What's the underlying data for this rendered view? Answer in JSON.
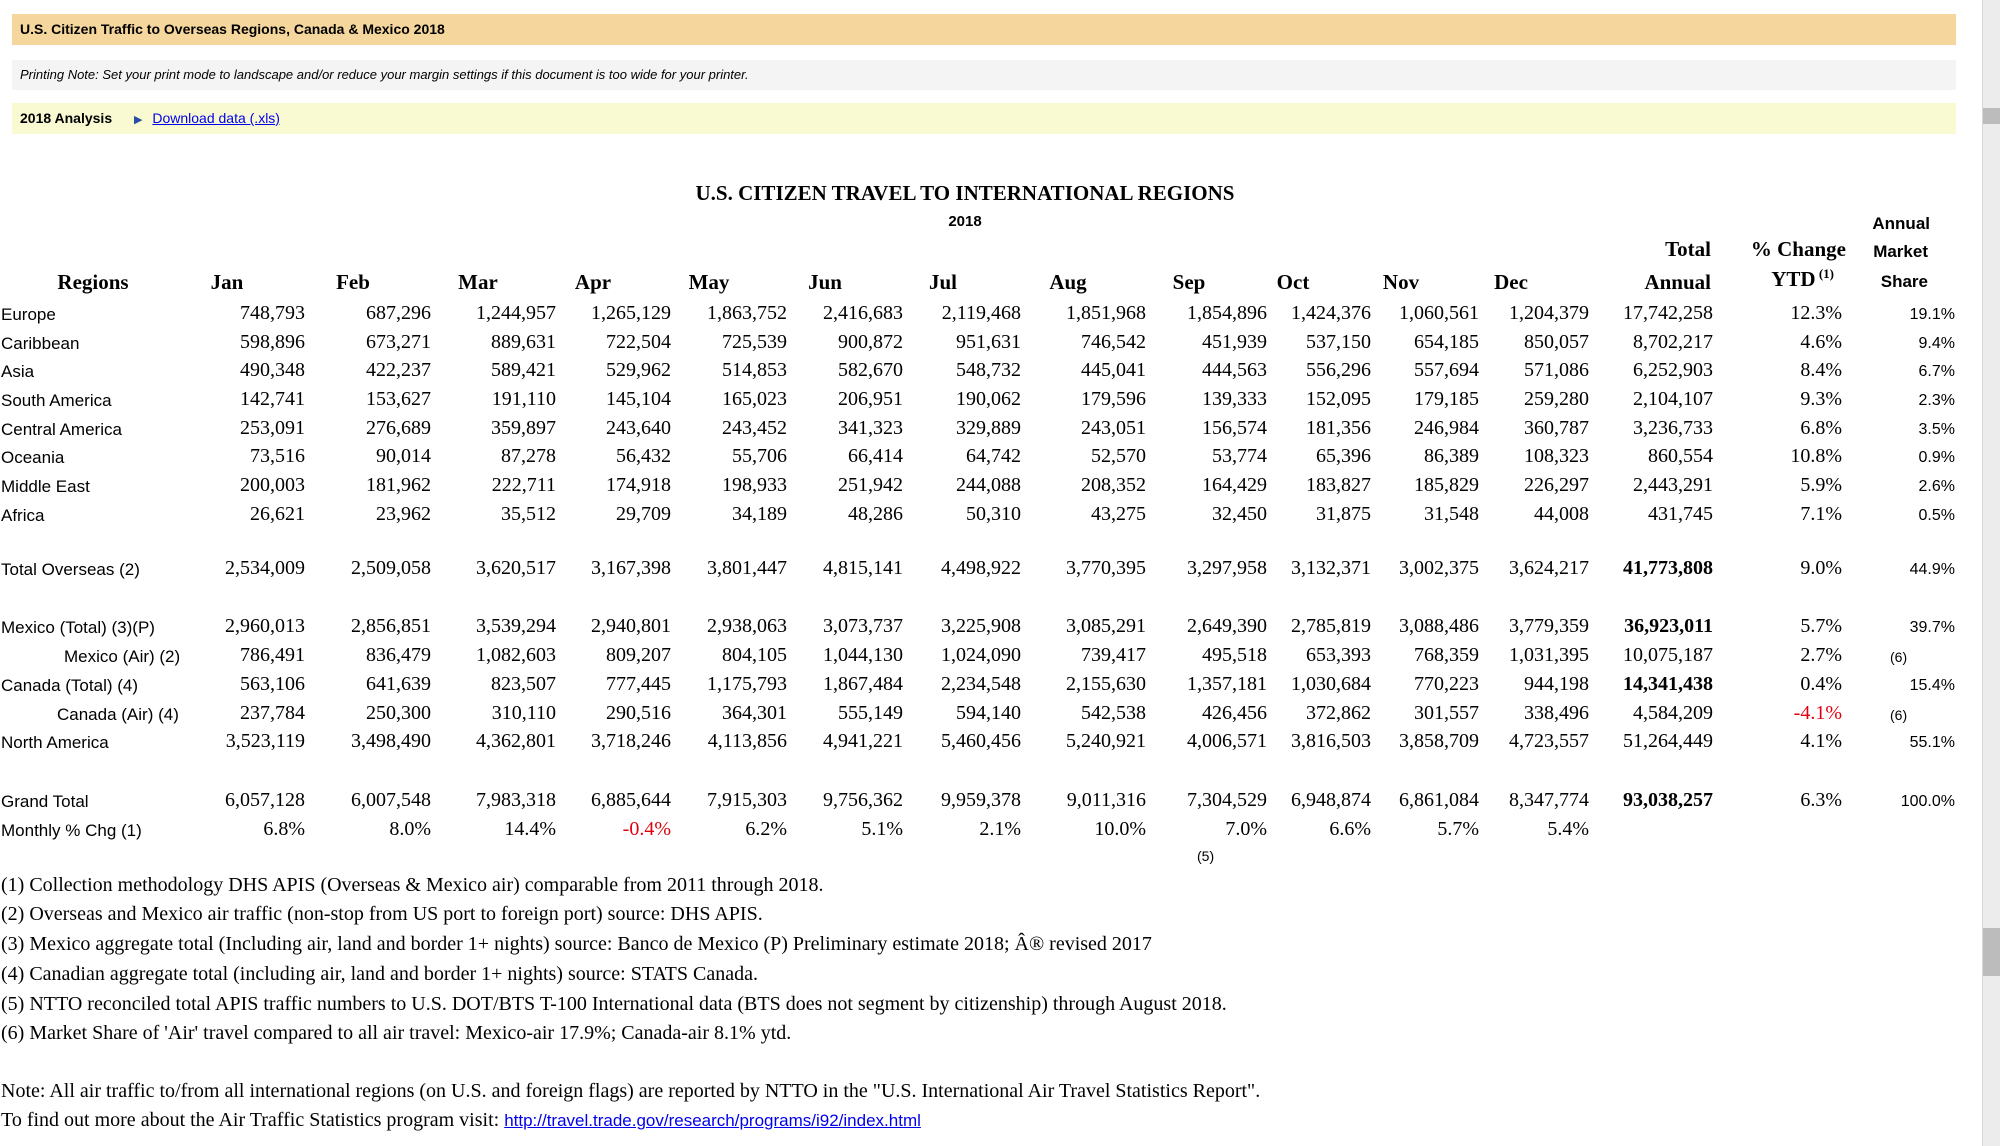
{
  "header": {
    "title": "U.S. Citizen Traffic to Overseas Regions, Canada & Mexico 2018",
    "printing_note": "Printing Note: Set your print mode to landscape and/or reduce your margin settings if this document is too wide for your printer.",
    "analysis_label": "2018 Analysis",
    "download_link": "Download data (.xls)"
  },
  "report": {
    "title": "U.S. CITIZEN TRAVEL TO INTERNATIONAL REGIONS",
    "year": "2018",
    "headers": {
      "regions": "Regions",
      "months": [
        "Jan",
        "Feb",
        "Mar",
        "Apr",
        "May",
        "Jun",
        "Jul",
        "Aug",
        "Sep",
        "Oct",
        "Nov",
        "Dec"
      ],
      "total_top": "Total",
      "total_bottom": "Annual",
      "change_top": "% Change",
      "change_bottom": "YTD",
      "change_sup": "(1)",
      "share_1": "Annual",
      "share_2": "Market",
      "share_3": "Share"
    },
    "rows": [
      {
        "label": "Europe",
        "values": [
          "748,793",
          "687,296",
          "1,244,957",
          "1,265,129",
          "1,863,752",
          "2,416,683",
          "2,119,468",
          "1,851,968",
          "1,854,896",
          "1,424,376",
          "1,060,561",
          "1,204,379"
        ],
        "total": "17,742,258",
        "change": "12.3%",
        "share": "19.1%"
      },
      {
        "label": "Caribbean",
        "values": [
          "598,896",
          "673,271",
          "889,631",
          "722,504",
          "725,539",
          "900,872",
          "951,631",
          "746,542",
          "451,939",
          "537,150",
          "654,185",
          "850,057"
        ],
        "total": "8,702,217",
        "change": "4.6%",
        "share": "9.4%"
      },
      {
        "label": "Asia",
        "values": [
          "490,348",
          "422,237",
          "589,421",
          "529,962",
          "514,853",
          "582,670",
          "548,732",
          "445,041",
          "444,563",
          "556,296",
          "557,694",
          "571,086"
        ],
        "total": "6,252,903",
        "change": "8.4%",
        "share": "6.7%"
      },
      {
        "label": "South America",
        "values": [
          "142,741",
          "153,627",
          "191,110",
          "145,104",
          "165,023",
          "206,951",
          "190,062",
          "179,596",
          "139,333",
          "152,095",
          "179,185",
          "259,280"
        ],
        "total": "2,104,107",
        "change": "9.3%",
        "share": "2.3%"
      },
      {
        "label": "Central America",
        "values": [
          "253,091",
          "276,689",
          "359,897",
          "243,640",
          "243,452",
          "341,323",
          "329,889",
          "243,051",
          "156,574",
          "181,356",
          "246,984",
          "360,787"
        ],
        "total": "3,236,733",
        "change": "6.8%",
        "share": "3.5%"
      },
      {
        "label": "Oceania",
        "values": [
          "73,516",
          "90,014",
          "87,278",
          "56,432",
          "55,706",
          "66,414",
          "64,742",
          "52,570",
          "53,774",
          "65,396",
          "86,389",
          "108,323"
        ],
        "total": "860,554",
        "change": "10.8%",
        "share": "0.9%"
      },
      {
        "label": "Middle East",
        "values": [
          "200,003",
          "181,962",
          "222,711",
          "174,918",
          "198,933",
          "251,942",
          "244,088",
          "208,352",
          "164,429",
          "183,827",
          "185,829",
          "226,297"
        ],
        "total": "2,443,291",
        "change": "5.9%",
        "share": "2.6%"
      },
      {
        "label": "Africa",
        "values": [
          "26,621",
          "23,962",
          "35,512",
          "29,709",
          "34,189",
          "48,286",
          "50,310",
          "43,275",
          "32,450",
          "31,875",
          "31,548",
          "44,008"
        ],
        "total": "431,745",
        "change": "7.1%",
        "share": "0.5%"
      },
      {
        "label": "Total Overseas (2)",
        "values": [
          "2,534,009",
          "2,509,058",
          "3,620,517",
          "3,167,398",
          "3,801,447",
          "4,815,141",
          "4,498,922",
          "3,770,395",
          "3,297,958",
          "3,132,371",
          "3,002,375",
          "3,624,217"
        ],
        "total": "41,773,808",
        "change": "9.0%",
        "share": "44.9%"
      },
      {
        "label": "Mexico (Total) (3)(P)",
        "values": [
          "2,960,013",
          "2,856,851",
          "3,539,294",
          "2,940,801",
          "2,938,063",
          "3,073,737",
          "3,225,908",
          "3,085,291",
          "2,649,390",
          "2,785,819",
          "3,088,486",
          "3,779,359"
        ],
        "total": "36,923,011",
        "change": "5.7%",
        "share": "39.7%"
      },
      {
        "label": "Mexico (Air) (2)",
        "values": [
          "786,491",
          "836,479",
          "1,082,603",
          "809,207",
          "804,105",
          "1,044,130",
          "1,024,090",
          "739,417",
          "495,518",
          "653,393",
          "768,359",
          "1,031,395"
        ],
        "total": "10,075,187",
        "change": "2.7%",
        "share": "(6)"
      },
      {
        "label": "Canada (Total) (4)",
        "values": [
          "563,106",
          "641,639",
          "823,507",
          "777,445",
          "1,175,793",
          "1,867,484",
          "2,234,548",
          "2,155,630",
          "1,357,181",
          "1,030,684",
          "770,223",
          "944,198"
        ],
        "total": "14,341,438",
        "change": "0.4%",
        "share": "15.4%"
      },
      {
        "label": "Canada (Air) (4)",
        "values": [
          "237,784",
          "250,300",
          "310,110",
          "290,516",
          "364,301",
          "555,149",
          "594,140",
          "542,538",
          "426,456",
          "372,862",
          "301,557",
          "338,496"
        ],
        "total": "4,584,209",
        "change": "-4.1%",
        "share": "(6)"
      },
      {
        "label": "North America",
        "values": [
          "3,523,119",
          "3,498,490",
          "4,362,801",
          "3,718,246",
          "4,113,856",
          "4,941,221",
          "5,460,456",
          "5,240,921",
          "4,006,571",
          "3,816,503",
          "3,858,709",
          "4,723,557"
        ],
        "total": "51,264,449",
        "change": "4.1%",
        "share": "55.1%"
      },
      {
        "label": "Grand Total",
        "values": [
          "6,057,128",
          "6,007,548",
          "7,983,318",
          "6,885,644",
          "7,915,303",
          "9,756,362",
          "9,959,378",
          "9,011,316",
          "7,304,529",
          "6,948,874",
          "6,861,084",
          "8,347,774"
        ],
        "total": "93,038,257",
        "change": "6.3%",
        "share": "100.0%"
      },
      {
        "label": "Monthly % Chg (1)",
        "values": [
          "6.8%",
          "8.0%",
          "14.4%",
          "-0.4%",
          "6.2%",
          "5.1%",
          "2.1%",
          "10.0%",
          "7.0%",
          "6.6%",
          "5.7%",
          "5.4%"
        ],
        "total": "",
        "change": "",
        "share": ""
      }
    ],
    "sep_note": "(5)"
  },
  "footnotes": [
    "(1) Collection methodology DHS APIS (Overseas & Mexico air) comparable from 2011 through 2018.",
    "(2) Overseas and Mexico air traffic (non-stop from US port to foreign port) source: DHS APIS.",
    "(3) Mexico aggregate total (Including air, land and border 1+ nights) source: Banco de Mexico (P) Preliminary estimate 2018; Â® revised 2017",
    "(4) Canadian aggregate total (including air, land and border 1+ nights) source: STATS Canada.",
    "(5) NTTO reconciled total APIS traffic numbers to U.S. DOT/BTS T-100 International data (BTS does not segment by citizenship) through August 2018.",
    "(6) Market Share of 'Air' travel compared to all air travel: Mexico-air 17.9%; Canada-air 8.1% ytd."
  ],
  "note": {
    "line1": "Note: All air traffic to/from all international regions (on U.S. and foreign flags) are reported by NTTO in the \"U.S. International Air Travel Statistics Report\".",
    "line2": "To find out more about the Air Traffic Statistics program visit:",
    "link": "http://travel.trade.gov/research/programs/i92/index.html"
  }
}
